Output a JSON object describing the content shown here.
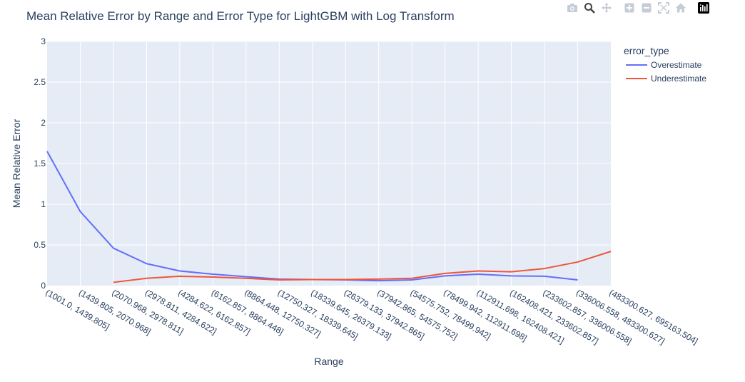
{
  "modebar": {
    "buttons": [
      "camera-icon",
      "zoom-icon",
      "pan-icon",
      "zoom-in-icon",
      "zoom-out-icon",
      "autoscale-icon",
      "home-icon",
      "plotly-logo-icon"
    ]
  },
  "chart_data": {
    "type": "line",
    "title": "Mean Relative Error by Range and Error Type for LightGBM with Log Transform",
    "xlabel": "Range",
    "ylabel": "Mean Relative Error",
    "ylim": [
      0,
      3
    ],
    "yticks": [
      0,
      0.5,
      1,
      1.5,
      2,
      2.5,
      3
    ],
    "ytick_labels": [
      "0",
      "0.5",
      "1",
      "1.5",
      "2",
      "2.5",
      "3"
    ],
    "grid": true,
    "legend_title": "error_type",
    "legend_position": "right",
    "categories": [
      "(1001.0, 1439.805]",
      "(1439.805, 2070.968]",
      "(2070.968, 2978.811]",
      "(2978.811, 4284.622]",
      "(4284.622, 6162.857]",
      "(6162.857, 8864.448]",
      "(8864.448, 12750.327]",
      "(12750.327, 18339.645]",
      "(18339.645, 26379.133]",
      "(26379.133, 37942.865]",
      "(37942.865, 54575.752]",
      "(54575.752, 78499.942]",
      "(78499.942, 112911.698]",
      "(112911.698, 162408.421]",
      "(162408.421, 233602.857]",
      "(233602.857, 336006.558]",
      "(336006.558, 483300.627]",
      "(483300.627, 695163.504]"
    ],
    "series": [
      {
        "name": "Overestimate",
        "color": "#636efa",
        "values": [
          1.65,
          0.91,
          0.46,
          0.27,
          0.18,
          0.14,
          0.11,
          0.08,
          0.075,
          0.07,
          0.06,
          0.07,
          0.12,
          0.14,
          0.12,
          0.115,
          0.07,
          null
        ]
      },
      {
        "name": "Underestimate",
        "color": "#EF553B",
        "values": [
          null,
          null,
          0.04,
          0.09,
          0.115,
          0.105,
          0.09,
          0.07,
          0.075,
          0.075,
          0.08,
          0.09,
          0.15,
          0.18,
          0.17,
          0.21,
          0.29,
          0.42
        ]
      }
    ]
  }
}
